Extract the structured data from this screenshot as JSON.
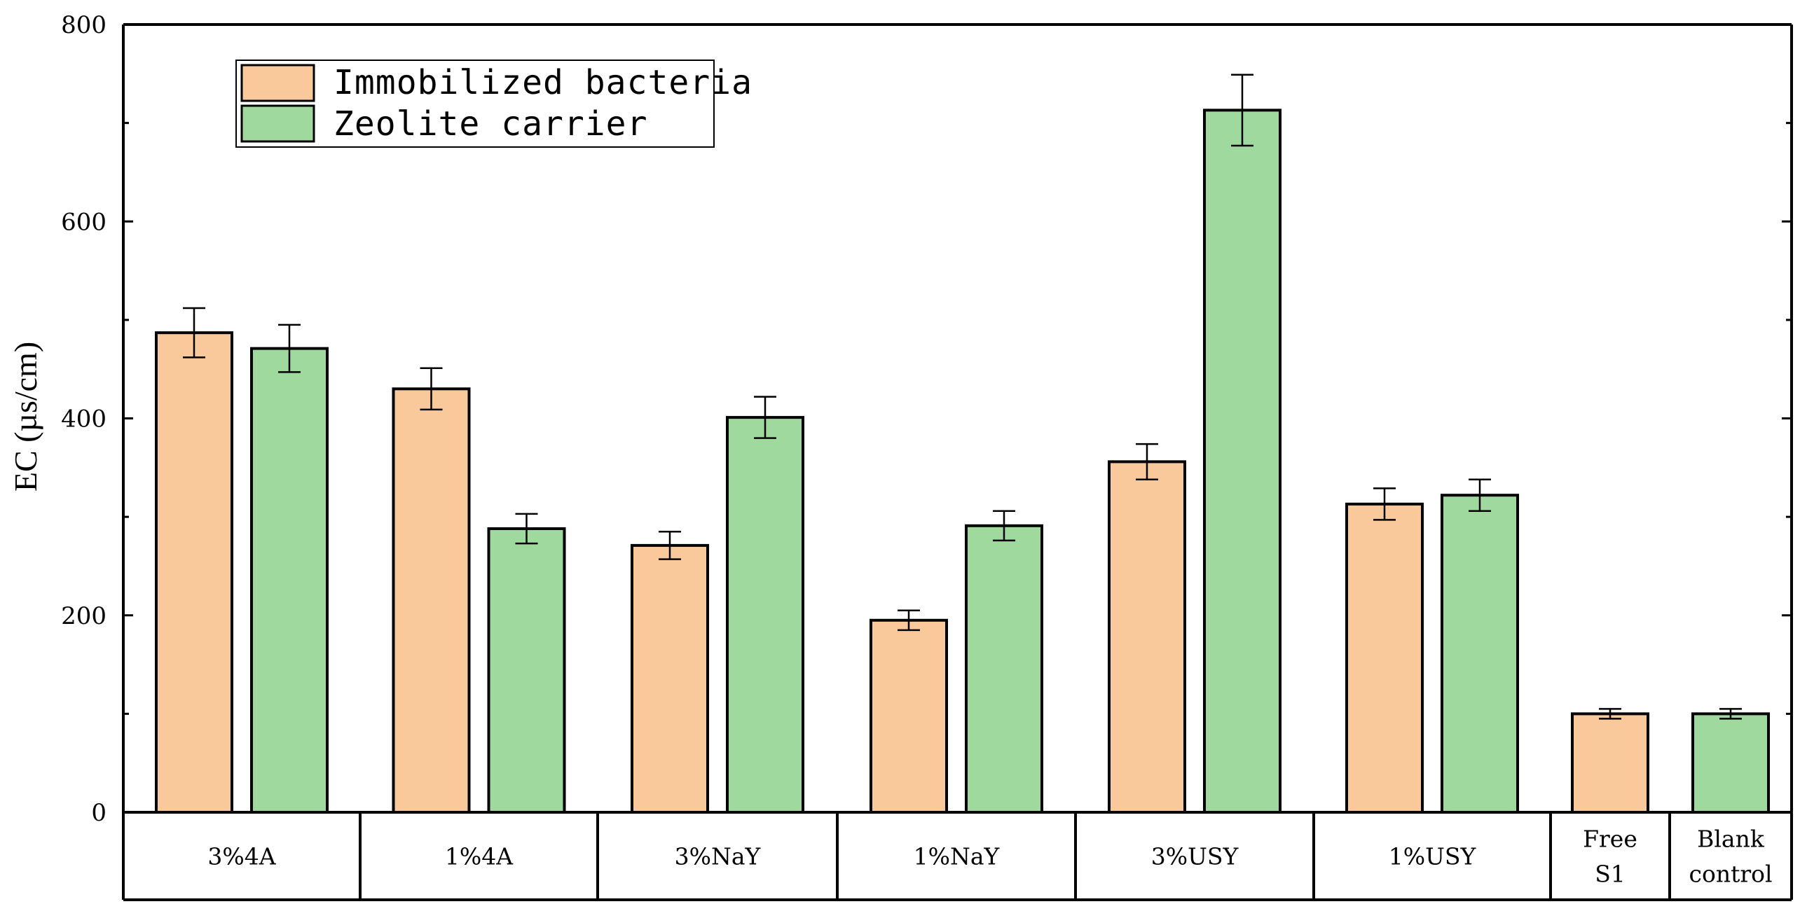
{
  "chart_data": {
    "type": "bar",
    "title": "",
    "xlabel": "",
    "ylabel": "EC (µs/cm)",
    "ylim": [
      0,
      800
    ],
    "yticks": [
      0,
      200,
      400,
      600,
      800
    ],
    "grid": false,
    "legend_position": "top-left",
    "groups": [
      {
        "label_lines": [
          "3%4A"
        ],
        "pair": true,
        "values": [
          487,
          471
        ],
        "errors": [
          25,
          24
        ]
      },
      {
        "label_lines": [
          "1%4A"
        ],
        "pair": true,
        "values": [
          430,
          288
        ],
        "errors": [
          21,
          15
        ]
      },
      {
        "label_lines": [
          "3%NaY"
        ],
        "pair": true,
        "values": [
          271,
          401
        ],
        "errors": [
          14,
          21
        ]
      },
      {
        "label_lines": [
          "1%NaY"
        ],
        "pair": true,
        "values": [
          195,
          291
        ],
        "errors": [
          10,
          15
        ]
      },
      {
        "label_lines": [
          "3%USY"
        ],
        "pair": true,
        "values": [
          356,
          713
        ],
        "errors": [
          18,
          36
        ]
      },
      {
        "label_lines": [
          "1%USY"
        ],
        "pair": true,
        "values": [
          313,
          322
        ],
        "errors": [
          16,
          16
        ]
      },
      {
        "label_lines": [
          "Free",
          "S1"
        ],
        "pair": false,
        "series_index": 0,
        "values": [
          100
        ],
        "errors": [
          5
        ]
      },
      {
        "label_lines": [
          "Blank",
          "control"
        ],
        "pair": false,
        "series_index": 1,
        "values": [
          100
        ],
        "errors": [
          5
        ]
      }
    ],
    "series": [
      {
        "name": "Immobilized bacteria",
        "color": "#f9c89b"
      },
      {
        "name": "Zeolite carrier",
        "color": "#9fd99e"
      }
    ]
  }
}
